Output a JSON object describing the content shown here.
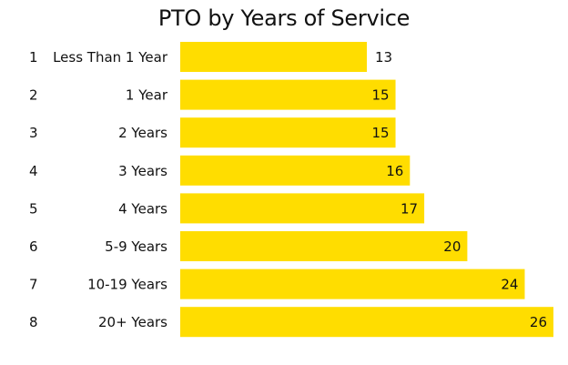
{
  "chart_data": {
    "type": "bar",
    "orientation": "horizontal",
    "title": "PTO by Years of Service",
    "xlabel": "",
    "ylabel": "",
    "row_numbers": [
      "1",
      "2",
      "3",
      "4",
      "5",
      "6",
      "7",
      "8"
    ],
    "categories": [
      "Less Than 1 Year",
      "1 Year",
      "2 Years",
      "3 Years",
      "4 Years",
      "5-9 Years",
      "10-19 Years",
      "20+ Years"
    ],
    "values": [
      13,
      15,
      15,
      16,
      17,
      20,
      24,
      26
    ],
    "xlim": [
      0,
      26
    ],
    "grid": false,
    "legend": "none",
    "bar_color": "#FFDD00",
    "label_color": "#111111"
  }
}
